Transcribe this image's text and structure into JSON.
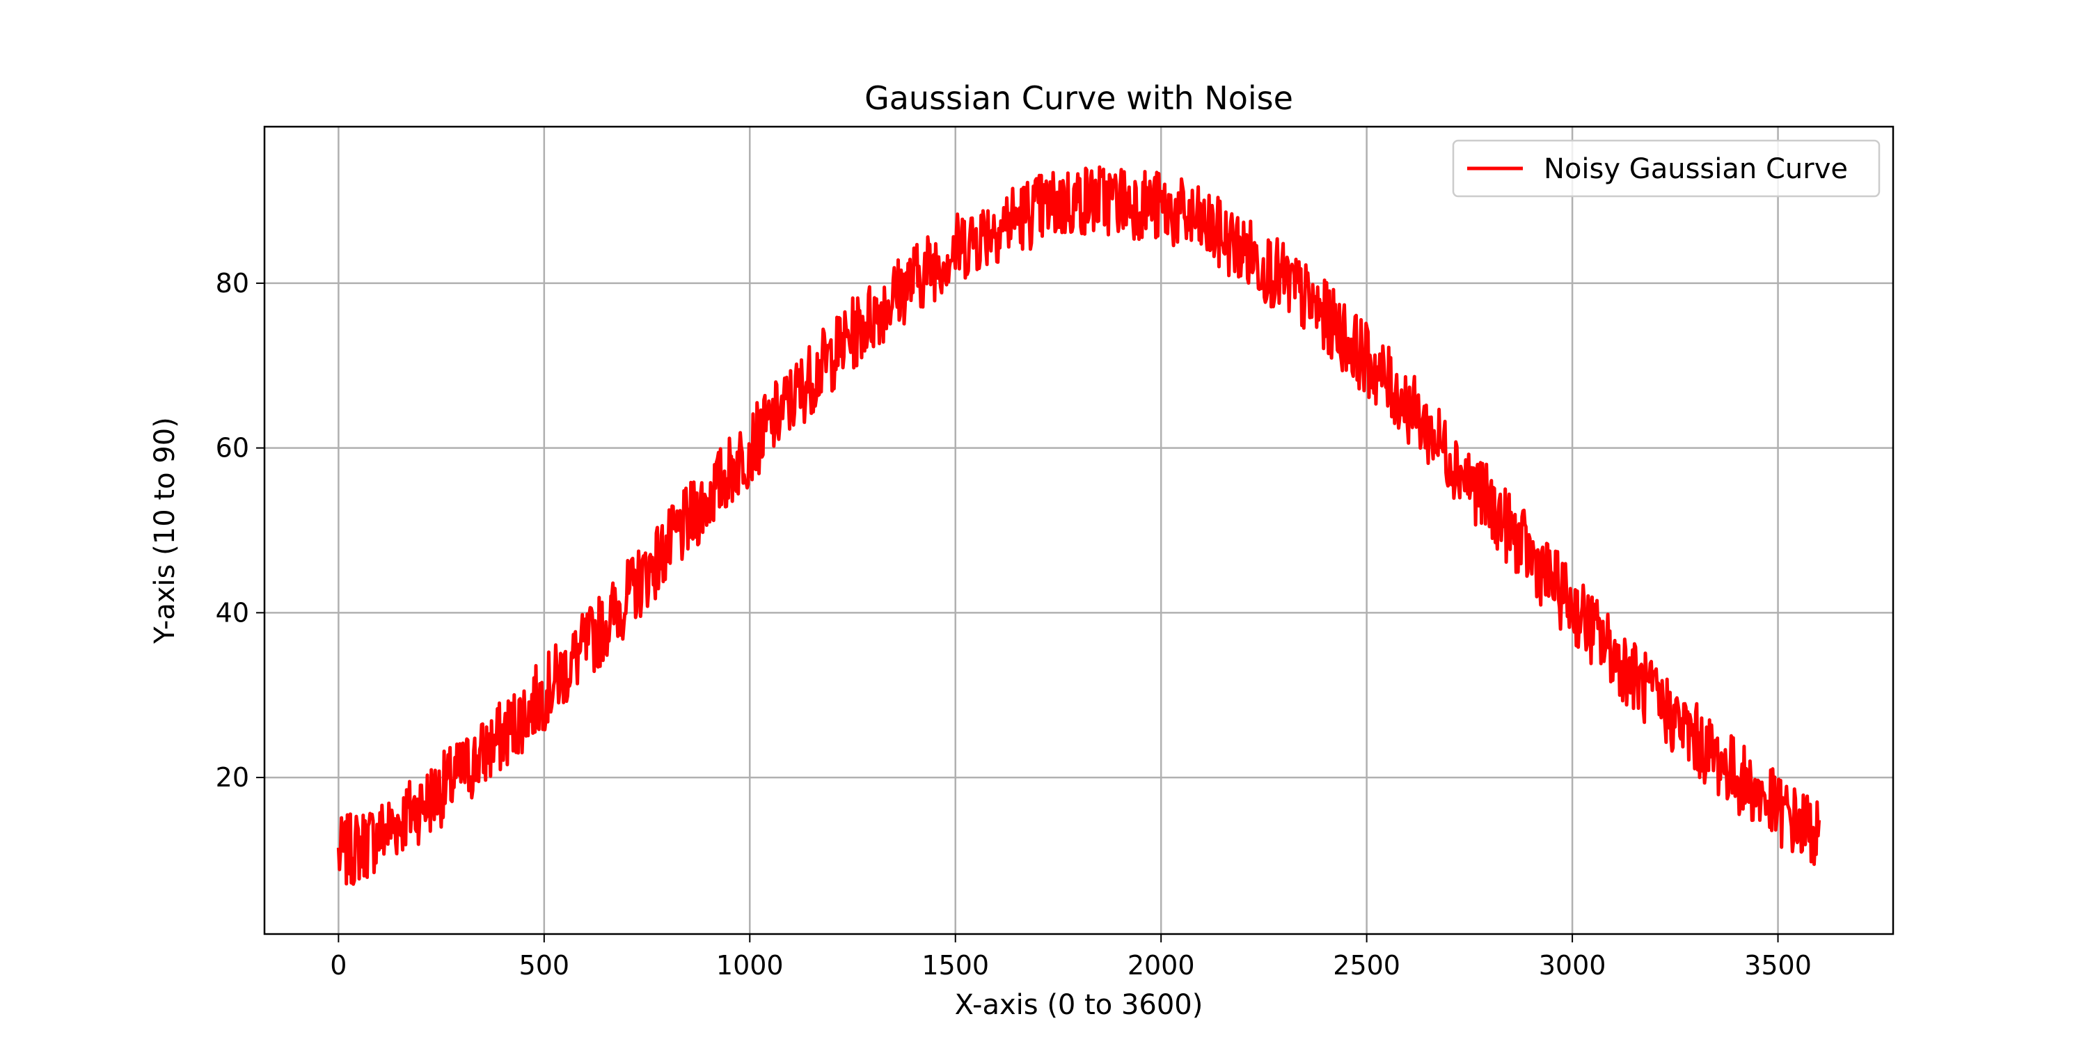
{
  "chart_data": {
    "type": "line",
    "title": "Gaussian Curve with Noise",
    "xlabel": "X-axis (0 to 3600)",
    "ylabel": "Y-axis (10 to 90)",
    "xlim": [
      -180,
      3780
    ],
    "ylim": [
      1,
      99
    ],
    "xticks": [
      0,
      500,
      1000,
      1500,
      2000,
      2500,
      3000,
      3500
    ],
    "yticks": [
      20,
      40,
      60,
      80
    ],
    "grid": true,
    "legend_position": "top-right",
    "series": [
      {
        "name": "Noisy Gaussian Curve",
        "color": "#ff0000",
        "x": [
          0,
          200,
          400,
          600,
          800,
          1000,
          1200,
          1400,
          1600,
          1800,
          2000,
          2200,
          2400,
          2600,
          2800,
          3000,
          3200,
          3400,
          3600
        ],
        "y": [
          10.6,
          16.6,
          25.1,
          35.8,
          47.9,
          60.0,
          71.2,
          80.5,
          86.9,
          90.0,
          89.1,
          84.0,
          75.8,
          65.1,
          53.0,
          40.8,
          29.6,
          20.2,
          13.2
        ],
        "noise_amplitude": 4.5
      }
    ]
  }
}
